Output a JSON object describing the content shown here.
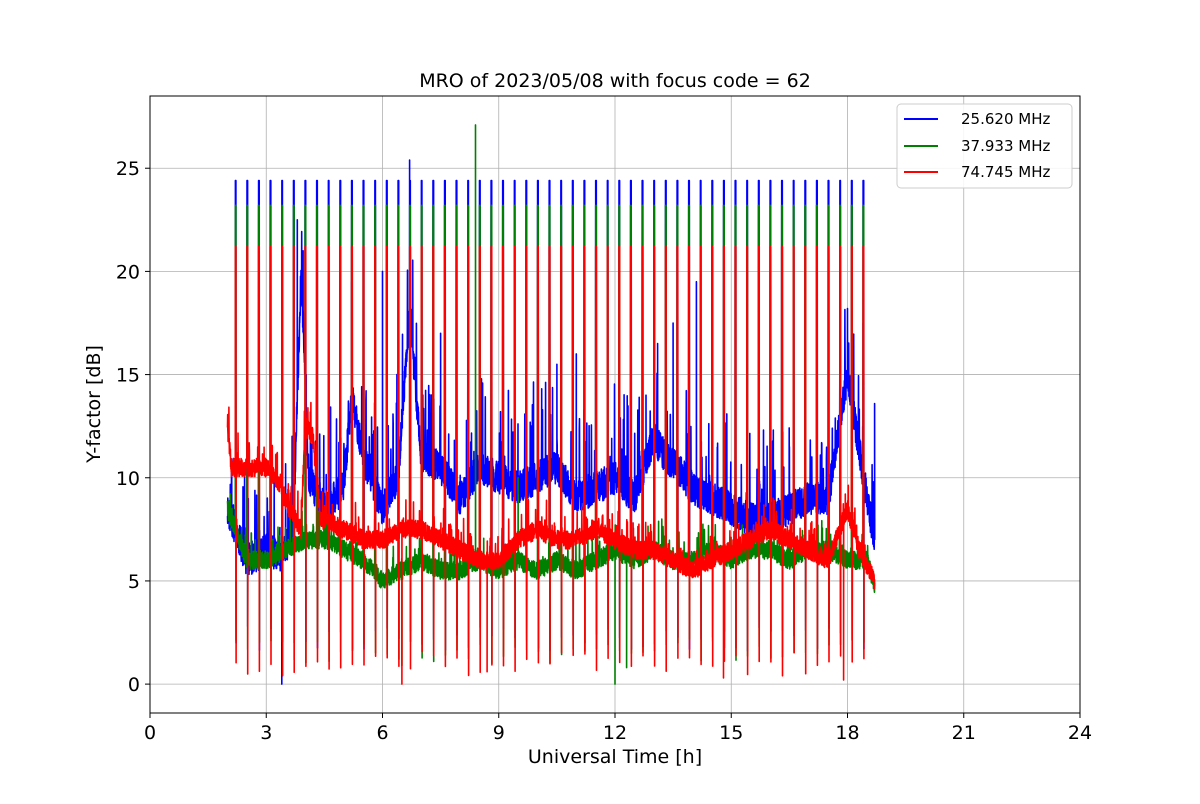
{
  "chart_data": {
    "type": "line",
    "title": "MRO of 2023/05/08 with focus code = 62",
    "xlabel": "Universal Time [h]",
    "ylabel": "Y-factor [dB]",
    "xlim": [
      0,
      24
    ],
    "ylim": [
      -1.4,
      28.5
    ],
    "xticks": [
      0,
      3,
      6,
      9,
      12,
      15,
      18,
      21,
      24
    ],
    "xtick_labels": [
      "0",
      "3",
      "6",
      "9",
      "12",
      "15",
      "18",
      "21",
      "24"
    ],
    "yticks": [
      0,
      5,
      10,
      15,
      20,
      25
    ],
    "ytick_labels": [
      "0",
      "5",
      "10",
      "15",
      "20",
      "25"
    ],
    "grid": true,
    "legend_position": "top-right",
    "time_range": [
      2.0,
      18.7
    ],
    "calibration_pulse_period_h": 0.3,
    "first_pulse_h": 2.2,
    "last_pulse_h": 18.5,
    "series": [
      {
        "name": "25.620 MHz",
        "color": "#0000ff",
        "pulse_high": 24.4,
        "pulse_low": 2.2,
        "baseline": [
          [
            2.0,
            8.5
          ],
          [
            2.5,
            6.0
          ],
          [
            3.0,
            6.5
          ],
          [
            3.4,
            6.2
          ],
          [
            3.7,
            7.5
          ],
          [
            3.9,
            20.0
          ],
          [
            4.1,
            10.0
          ],
          [
            4.5,
            8.5
          ],
          [
            5.0,
            9.5
          ],
          [
            5.2,
            14.0
          ],
          [
            5.5,
            11.0
          ],
          [
            6.0,
            8.5
          ],
          [
            6.4,
            10.0
          ],
          [
            6.7,
            18.0
          ],
          [
            7.0,
            11.0
          ],
          [
            7.5,
            10.5
          ],
          [
            8.0,
            9.0
          ],
          [
            8.5,
            10.5
          ],
          [
            9.0,
            10.0
          ],
          [
            9.5,
            9.5
          ],
          [
            10.0,
            10.0
          ],
          [
            10.5,
            10.5
          ],
          [
            11.0,
            9.0
          ],
          [
            11.5,
            9.5
          ],
          [
            12.0,
            10.0
          ],
          [
            12.5,
            9.0
          ],
          [
            13.0,
            12.0
          ],
          [
            13.3,
            11.0
          ],
          [
            13.6,
            10.5
          ],
          [
            14.0,
            9.5
          ],
          [
            14.5,
            9.0
          ],
          [
            15.0,
            8.5
          ],
          [
            15.5,
            8.0
          ],
          [
            16.0,
            8.0
          ],
          [
            16.5,
            8.5
          ],
          [
            17.0,
            9.0
          ],
          [
            17.5,
            9.0
          ],
          [
            18.0,
            15.0
          ],
          [
            18.5,
            9.0
          ],
          [
            18.7,
            7.0
          ]
        ],
        "spikes": [
          [
            3.4,
            0.0
          ],
          [
            3.8,
            22.5
          ],
          [
            3.95,
            21.0
          ],
          [
            5.2,
            19.5
          ],
          [
            5.5,
            14.0
          ],
          [
            6.0,
            20.0
          ],
          [
            6.7,
            25.4
          ],
          [
            6.7,
            22.8
          ],
          [
            7.5,
            17.0
          ],
          [
            10.5,
            15.5
          ],
          [
            11.0,
            16.0
          ],
          [
            12.8,
            14.0
          ],
          [
            13.1,
            16.5
          ],
          [
            13.5,
            17.5
          ],
          [
            14.1,
            19.5
          ],
          [
            16.5,
            11.5
          ],
          [
            17.5,
            11.0
          ],
          [
            17.8,
            15.0
          ],
          [
            18.0,
            18.2
          ],
          [
            18.4,
            17.5
          ],
          [
            18.7,
            13.6
          ]
        ]
      },
      {
        "name": "37.933 MHz",
        "color": "#008000",
        "pulse_high": 23.2,
        "pulse_low": 1.6,
        "baseline": [
          [
            2.0,
            8.5
          ],
          [
            2.5,
            6.0
          ],
          [
            3.0,
            6.0
          ],
          [
            3.5,
            6.5
          ],
          [
            4.0,
            7.0
          ],
          [
            4.5,
            7.0
          ],
          [
            5.0,
            6.5
          ],
          [
            5.5,
            6.0
          ],
          [
            6.0,
            5.0
          ],
          [
            6.5,
            5.5
          ],
          [
            7.0,
            6.0
          ],
          [
            7.5,
            5.5
          ],
          [
            8.0,
            5.5
          ],
          [
            8.5,
            6.0
          ],
          [
            9.0,
            5.5
          ],
          [
            9.5,
            6.0
          ],
          [
            10.0,
            5.5
          ],
          [
            10.5,
            6.0
          ],
          [
            11.0,
            5.5
          ],
          [
            11.5,
            6.0
          ],
          [
            12.0,
            6.5
          ],
          [
            12.5,
            6.0
          ],
          [
            13.0,
            6.5
          ],
          [
            13.5,
            6.0
          ],
          [
            14.0,
            6.0
          ],
          [
            14.5,
            6.5
          ],
          [
            15.0,
            6.0
          ],
          [
            15.5,
            6.5
          ],
          [
            16.0,
            6.5
          ],
          [
            16.5,
            6.0
          ],
          [
            17.0,
            6.5
          ],
          [
            17.5,
            6.5
          ],
          [
            18.0,
            6.0
          ],
          [
            18.5,
            6.0
          ],
          [
            18.7,
            4.8
          ]
        ],
        "spikes": [
          [
            8.4,
            27.1
          ],
          [
            12.0,
            0.0
          ],
          [
            6.5,
            0.9
          ],
          [
            9.5,
            10.0
          ],
          [
            12.3,
            0.8
          ]
        ]
      },
      {
        "name": "74.745 MHz",
        "color": "#ff0000",
        "pulse_high": 21.2,
        "pulse_low": 1.0,
        "baseline": [
          [
            2.0,
            12.4
          ],
          [
            2.1,
            10.5
          ],
          [
            2.5,
            10.5
          ],
          [
            3.0,
            10.5
          ],
          [
            3.3,
            9.8
          ],
          [
            3.6,
            8.5
          ],
          [
            3.9,
            7.5
          ],
          [
            4.0,
            12.5
          ],
          [
            4.2,
            12.0
          ],
          [
            4.4,
            8.0
          ],
          [
            5.0,
            7.5
          ],
          [
            5.5,
            7.0
          ],
          [
            6.0,
            7.0
          ],
          [
            6.5,
            7.5
          ],
          [
            7.0,
            7.5
          ],
          [
            7.5,
            7.0
          ],
          [
            8.0,
            6.5
          ],
          [
            8.5,
            6.0
          ],
          [
            9.0,
            6.0
          ],
          [
            9.5,
            7.0
          ],
          [
            10.0,
            7.5
          ],
          [
            10.5,
            7.0
          ],
          [
            11.0,
            7.0
          ],
          [
            11.5,
            7.5
          ],
          [
            12.0,
            7.0
          ],
          [
            12.5,
            6.5
          ],
          [
            13.0,
            6.5
          ],
          [
            13.5,
            6.0
          ],
          [
            14.0,
            5.5
          ],
          [
            14.5,
            6.0
          ],
          [
            15.0,
            6.5
          ],
          [
            15.5,
            7.0
          ],
          [
            16.0,
            7.5
          ],
          [
            16.5,
            7.0
          ],
          [
            17.0,
            6.5
          ],
          [
            17.5,
            6.0
          ],
          [
            18.0,
            8.5
          ],
          [
            18.3,
            6.5
          ],
          [
            18.7,
            5.0
          ]
        ],
        "spikes": [
          [
            6.5,
            0.0
          ],
          [
            8.7,
            0.6
          ],
          [
            14.8,
            0.3
          ],
          [
            17.9,
            0.2
          ]
        ]
      }
    ]
  }
}
